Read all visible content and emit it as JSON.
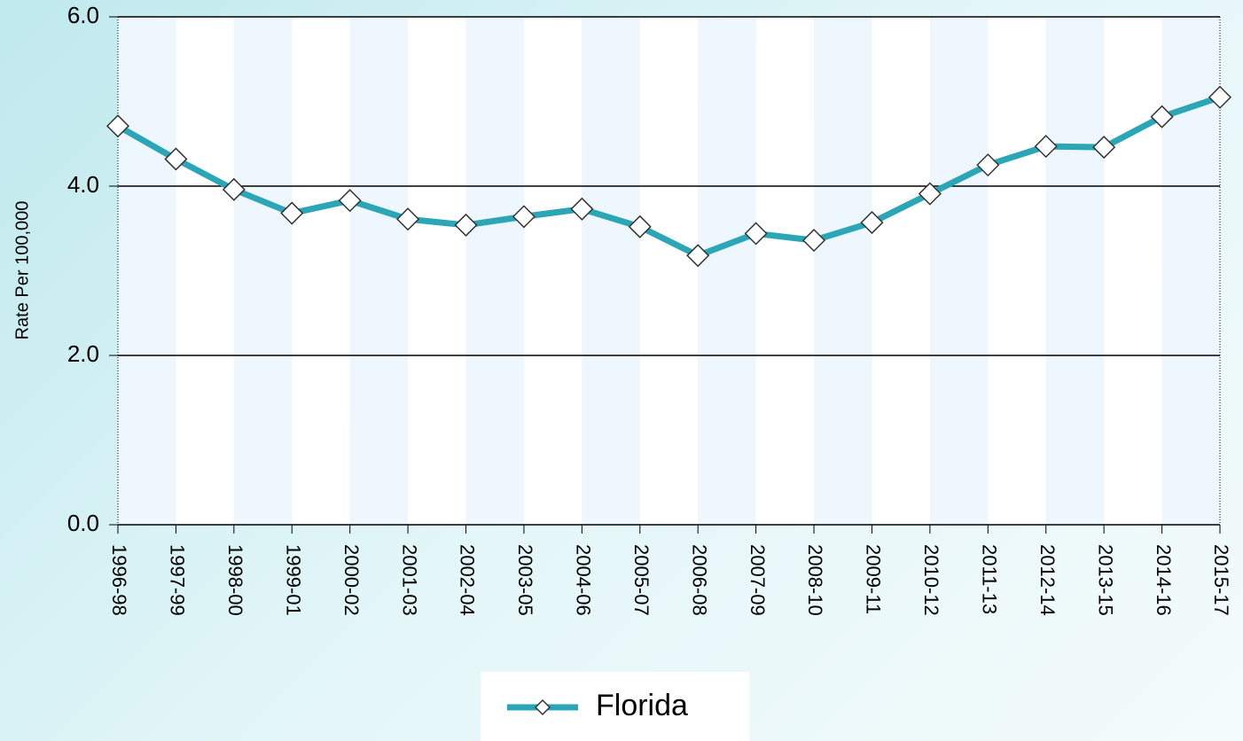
{
  "chart_data": {
    "type": "line",
    "y_label": "Rate Per 100,000",
    "categories": [
      "1996-98",
      "1997-99",
      "1998-00",
      "1999-01",
      "2000-02",
      "2001-03",
      "2002-04",
      "2003-05",
      "2004-06",
      "2005-07",
      "2006-08",
      "2007-09",
      "2008-10",
      "2009-11",
      "2010-12",
      "2011-13",
      "2012-14",
      "2013-15",
      "2014-16",
      "2015-17"
    ],
    "series": [
      {
        "name": "Florida",
        "color": "#2ba6b6",
        "values": [
          4.71,
          4.32,
          3.96,
          3.68,
          3.83,
          3.61,
          3.54,
          3.64,
          3.73,
          3.52,
          3.18,
          3.44,
          3.36,
          3.57,
          3.91,
          4.25,
          4.47,
          4.46,
          4.82,
          5.05
        ]
      }
    ],
    "ylim": [
      0,
      6
    ],
    "yticks": [
      {
        "value": 0,
        "label": "0.0"
      },
      {
        "value": 2,
        "label": "2.0"
      },
      {
        "value": 4,
        "label": "4.0"
      },
      {
        "value": 6,
        "label": "6.0"
      }
    ],
    "grid": true
  }
}
